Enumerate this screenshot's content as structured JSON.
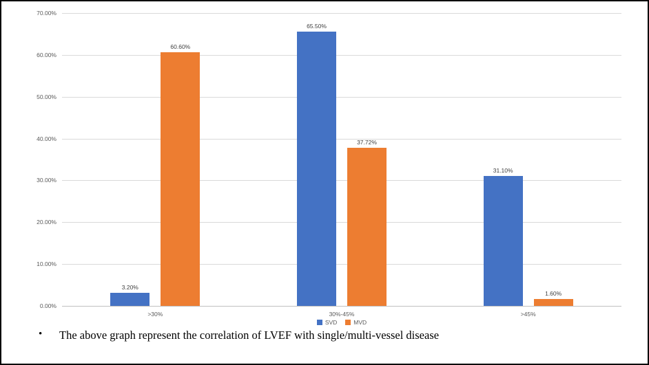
{
  "chart_data": {
    "type": "bar",
    "title": "",
    "categories": [
      ">30%",
      "30%-45%",
      ">45%"
    ],
    "series": [
      {
        "name": "SVD",
        "color": "#4472c4",
        "values": [
          3.2,
          65.5,
          31.1
        ],
        "labels": [
          "3.20%",
          "65.50%",
          "31.10%"
        ]
      },
      {
        "name": "MVD",
        "color": "#ed7d31",
        "values": [
          60.6,
          37.72,
          1.6
        ],
        "labels": [
          "60.60%",
          "37.72%",
          "1.60%"
        ]
      }
    ],
    "ylim": [
      0,
      70
    ],
    "ytick_step": 10,
    "ytick_labels": [
      "0.00%",
      "10.00%",
      "20.00%",
      "30.00%",
      "40.00%",
      "50.00%",
      "60.00%",
      "70.00%"
    ],
    "grid": true,
    "legend_position": "bottom",
    "gridline_color": "#d9d9d9",
    "baseline_color": "#bfbfbf",
    "tick_text_color": "#595959",
    "value_label_color": "#404040"
  },
  "caption": {
    "bullet": "•",
    "text": "The above graph represent the correlation of LVEF with single/multi-vessel disease"
  }
}
